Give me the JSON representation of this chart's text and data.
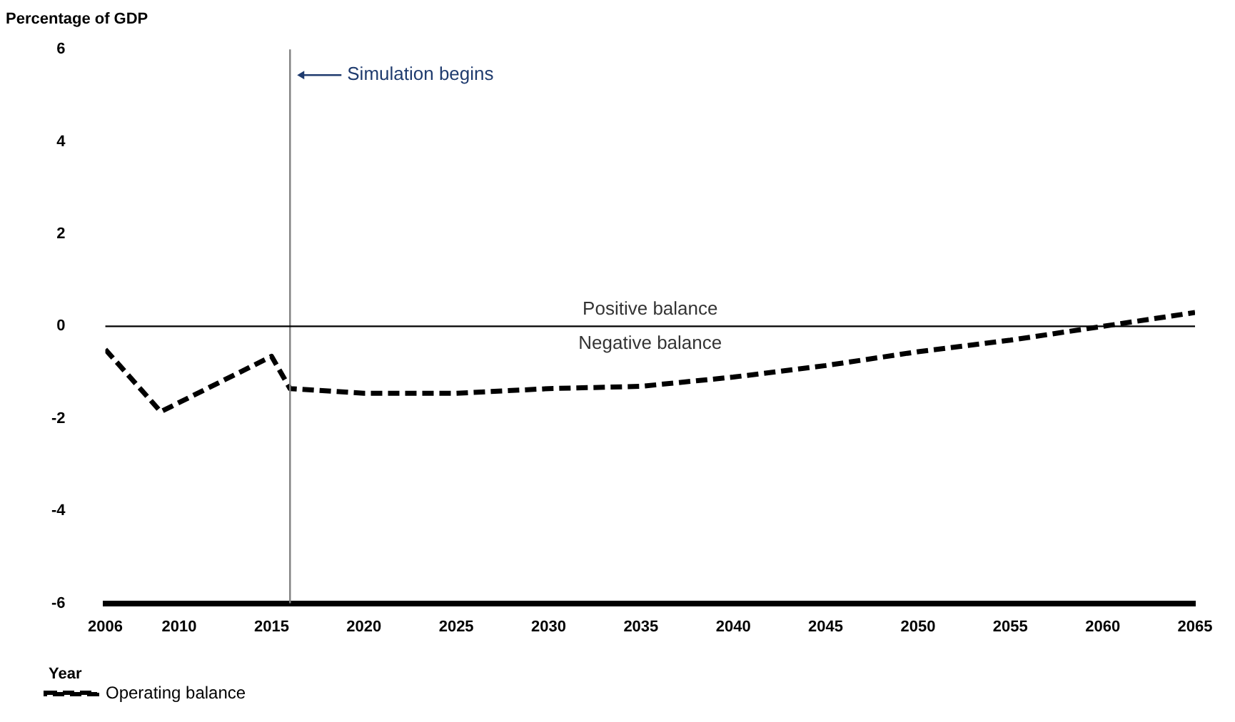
{
  "chart_data": {
    "type": "line",
    "ylabel": "Percentage of GDP",
    "xlabel": "Year",
    "x": [
      2006,
      2009,
      2015,
      2016,
      2020,
      2025,
      2030,
      2035,
      2040,
      2045,
      2050,
      2055,
      2060,
      2065
    ],
    "series": [
      {
        "name": "Operating balance",
        "color": "#000000",
        "values": [
          -0.5,
          -1.85,
          -0.65,
          -1.35,
          -1.45,
          -1.45,
          -1.35,
          -1.3,
          -1.1,
          -0.85,
          -0.55,
          -0.3,
          0.0,
          0.3
        ]
      }
    ],
    "xlim": [
      2006,
      2065
    ],
    "xticks": [
      2006,
      2010,
      2015,
      2020,
      2025,
      2030,
      2035,
      2040,
      2045,
      2050,
      2055,
      2060,
      2065
    ],
    "ylim": [
      -6,
      6
    ],
    "yticks": [
      -6,
      -4,
      -2,
      0,
      2,
      4,
      6
    ],
    "ref_lines": [
      {
        "axis": "x",
        "value": 2016,
        "label": "Simulation begins",
        "color": "#808080"
      },
      {
        "axis": "y",
        "value": 0,
        "color": "#000000"
      }
    ],
    "annotations": [
      "Positive balance",
      "Negative balance"
    ],
    "grid": false,
    "legend": "bottom left",
    "line_style": "dashed",
    "marker": "none"
  }
}
